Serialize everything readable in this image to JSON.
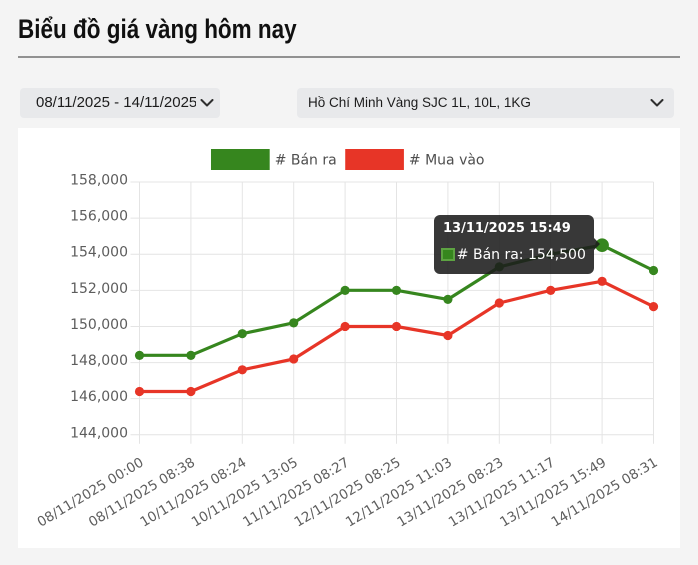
{
  "page": {
    "title": "Biểu đồ giá vàng hôm nay"
  },
  "controls": {
    "date_range": {
      "value": "08/11/2025 - 14/11/2025"
    },
    "market": {
      "value": "Hồ Chí Minh Vàng SJC 1L, 10L, 1KG"
    }
  },
  "chart_data": {
    "type": "line",
    "categories": [
      "08/11/2025 00:00",
      "08/11/2025 08:38",
      "10/11/2025 08:24",
      "10/11/2025 13:05",
      "11/11/2025 08:27",
      "12/11/2025 08:25",
      "12/11/2025 11:03",
      "13/11/2025 08:23",
      "13/11/2025 11:17",
      "13/11/2025 15:49",
      "14/11/2025 08:31"
    ],
    "series": [
      {
        "name": "# Bán ra",
        "color": "#36861e",
        "values": [
          148400,
          148400,
          149600,
          150200,
          152000,
          152000,
          151500,
          153300,
          154000,
          154500,
          153100
        ]
      },
      {
        "name": "# Mua vào",
        "color": "#e73527",
        "values": [
          146400,
          146400,
          147600,
          148200,
          150000,
          150000,
          149500,
          151300,
          152000,
          152500,
          151100
        ]
      }
    ],
    "ylim": [
      144000,
      158000
    ],
    "ytick_step": 2000,
    "grid": true,
    "legend_position": "top",
    "hovered_point": {
      "series_index": 0,
      "point_index": 9
    }
  },
  "tooltip": {
    "title": "13/11/2025 15:49",
    "label": "# Bán ra: 154,500",
    "swatch_color": "#36861e"
  },
  "icons": {
    "chevron_color": "#2f2f2f"
  },
  "colors": {
    "page_bg": "#f4f4f4",
    "panel_bg": "#ffffff",
    "grid": "#e4e4e4",
    "tick_text": "#5d5d5d",
    "legend_text": "#4e4e4e"
  }
}
